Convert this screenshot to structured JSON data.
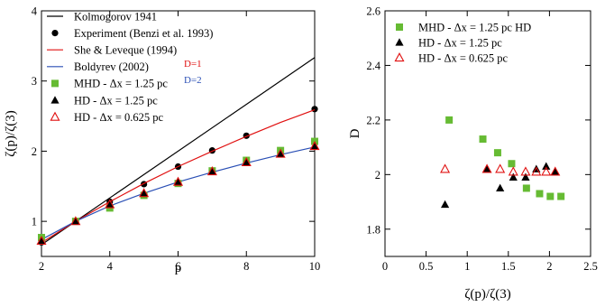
{
  "chart_data": [
    {
      "type": "line",
      "xlabel": "p",
      "ylabel": "ζ(p)/ζ(3)",
      "xlim": [
        2,
        10
      ],
      "ylim": [
        0.5,
        4
      ],
      "xticks": [
        2,
        4,
        6,
        8,
        10
      ],
      "yticks": [
        1,
        2,
        3,
        4
      ],
      "legend": "top-left",
      "series": [
        {
          "name": "Kolmogorov 1941",
          "kind": "line",
          "color": "#000000",
          "x": [
            2,
            10
          ],
          "y": [
            0.667,
            3.333
          ]
        },
        {
          "name": "Experiment (Benzi et al. 1993)",
          "kind": "marker",
          "marker": "circle",
          "color": "#000000",
          "x": [
            2,
            3,
            4,
            5,
            6,
            7,
            8,
            10
          ],
          "y": [
            0.7,
            1.0,
            1.28,
            1.53,
            1.78,
            2.01,
            2.22,
            2.6
          ]
        },
        {
          "name": "She & Leveque (1994)",
          "kind": "line",
          "color": "#e01010",
          "x": [
            2,
            3,
            4,
            5,
            6,
            7,
            8,
            9,
            10
          ],
          "y": [
            0.696,
            1.0,
            1.28,
            1.54,
            1.78,
            2.0,
            2.21,
            2.41,
            2.59
          ]
        },
        {
          "name": "Boldyrev (2002)",
          "kind": "line",
          "color": "#2a4fb5",
          "x": [
            2,
            3,
            4,
            5,
            6,
            7,
            8,
            9,
            10
          ],
          "y": [
            0.74,
            1.0,
            1.22,
            1.4,
            1.56,
            1.7,
            1.83,
            1.95,
            2.06
          ]
        },
        {
          "name": "MHD  - Δx = 1.25 pc",
          "kind": "marker",
          "marker": "square",
          "color": "#66bb33",
          "x": [
            2,
            3,
            4,
            5,
            6,
            7,
            8,
            9,
            10
          ],
          "y": [
            0.77,
            1.0,
            1.19,
            1.37,
            1.54,
            1.72,
            1.87,
            2.01,
            2.14
          ]
        },
        {
          "name": "HD     - Δx = 1.25 pc",
          "kind": "marker",
          "marker": "triangle",
          "color": "#000000",
          "x": [
            2,
            3,
            4,
            5,
            6,
            7,
            8,
            9,
            10
          ],
          "y": [
            0.72,
            1.0,
            1.24,
            1.4,
            1.56,
            1.71,
            1.84,
            1.96,
            2.07
          ]
        },
        {
          "name": "HD     - Δx = 0.625 pc",
          "kind": "marker",
          "marker": "triangle-open",
          "color": "#e01010",
          "x": [
            2,
            3,
            4,
            5,
            6,
            7,
            8,
            9,
            10
          ],
          "y": [
            0.72,
            1.0,
            1.24,
            1.4,
            1.56,
            1.71,
            1.84,
            1.96,
            2.07
          ]
        }
      ],
      "annotations": [
        {
          "text": "D=1",
          "color": "#e01010"
        },
        {
          "text": "D=2",
          "color": "#2a4fb5"
        }
      ]
    },
    {
      "type": "scatter",
      "xlabel": "ζ(p)/ζ(3)",
      "ylabel": "D",
      "xlim": [
        0,
        2.5
      ],
      "ylim": [
        1.7,
        2.6
      ],
      "xticks": [
        0,
        0.5,
        1,
        1.5,
        2,
        2.5
      ],
      "yticks": [
        1.8,
        2,
        2.2,
        2.4,
        2.6
      ],
      "legend": "top-left",
      "series": [
        {
          "name": "MHD - Δx = 1.25 pc HD",
          "marker": "square",
          "color": "#66bb33",
          "x": [
            0.78,
            1.19,
            1.37,
            1.54,
            1.72,
            1.88,
            2.01,
            2.14
          ],
          "y": [
            2.2,
            2.13,
            2.08,
            2.04,
            1.95,
            1.93,
            1.92,
            1.92
          ]
        },
        {
          "name": "HD     - Δx = 1.25 pc",
          "marker": "triangle",
          "color": "#000000",
          "x": [
            0.73,
            1.24,
            1.4,
            1.56,
            1.71,
            1.84,
            1.96,
            2.07
          ],
          "y": [
            1.89,
            2.02,
            1.95,
            1.99,
            1.99,
            2.02,
            2.03,
            2.01
          ]
        },
        {
          "name": "HD     - Δx = 0.625 pc",
          "marker": "triangle-open",
          "color": "#e01010",
          "x": [
            0.73,
            1.24,
            1.4,
            1.56,
            1.71,
            1.84,
            1.96,
            2.07
          ],
          "y": [
            2.02,
            2.02,
            2.02,
            2.01,
            2.01,
            2.01,
            2.01,
            2.01
          ]
        }
      ]
    }
  ]
}
